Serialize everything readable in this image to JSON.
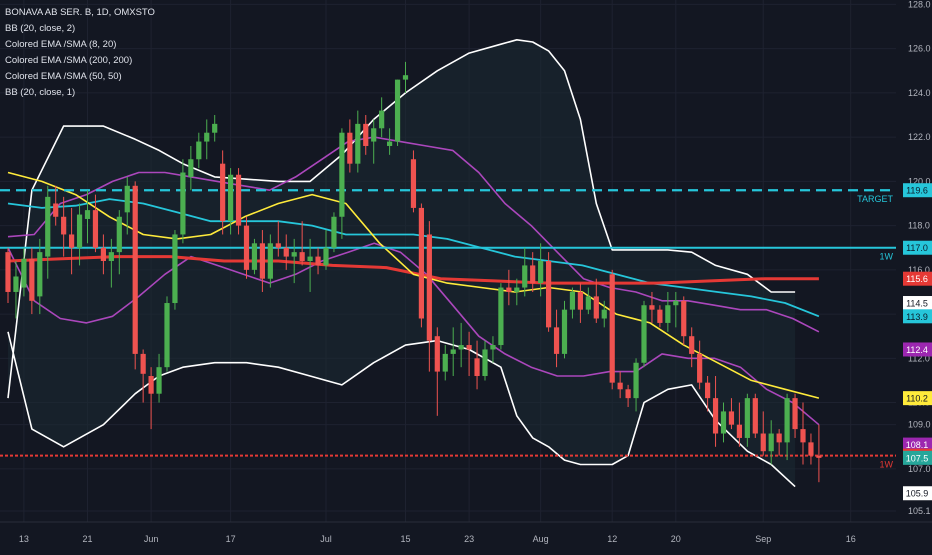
{
  "chart_data": {
    "type": "candlestick",
    "title": "BONAVA AB SER. B, 1D, OMXSTO",
    "legend": [
      "BB (20, close, 2)",
      "Colored EMA /SMA (8, 20)",
      "Colored EMA /SMA (200, 200)",
      "Colored EMA /SMA (50, 50)",
      "BB (20, close, 1)"
    ],
    "ylim": [
      104.6,
      128.2
    ],
    "y_ticks": [
      "128.0",
      "126.0",
      "124.0",
      "122.0",
      "120.0",
      "118.0",
      "116.0",
      "114.0",
      "112.0",
      "110.0",
      "109.0",
      "107.0",
      "105.1"
    ],
    "y_tick_values": [
      128.0,
      126.0,
      124.0,
      122.0,
      120.0,
      118.0,
      116.0,
      114.0,
      112.0,
      110.0,
      109.0,
      107.0,
      105.1
    ],
    "x_ticks": [
      "13",
      "21",
      "Jun",
      "17",
      "Jul",
      "15",
      "23",
      "Aug",
      "12",
      "20",
      "Sep",
      "16"
    ],
    "x_tick_index": [
      2,
      10,
      18,
      28,
      40,
      50,
      58,
      67,
      76,
      84,
      95,
      106
    ],
    "candles": [
      [
        116.8,
        117.0,
        114.5,
        115.0
      ],
      [
        115.0,
        116.4,
        113.8,
        115.7
      ],
      [
        115.2,
        117.0,
        114.8,
        116.5
      ],
      [
        116.5,
        117.0,
        114.0,
        114.6
      ],
      [
        114.8,
        117.4,
        114.0,
        116.8
      ],
      [
        116.6,
        119.8,
        115.6,
        119.3
      ],
      [
        119.0,
        119.8,
        118.0,
        118.4
      ],
      [
        118.4,
        119.3,
        116.6,
        117.6
      ],
      [
        117.6,
        118.8,
        115.8,
        117.0
      ],
      [
        117.0,
        119.0,
        116.2,
        118.5
      ],
      [
        118.3,
        119.6,
        117.2,
        118.7
      ],
      [
        118.7,
        119.4,
        116.8,
        117.0
      ],
      [
        117.0,
        117.6,
        115.8,
        116.4
      ],
      [
        116.4,
        117.4,
        115.2,
        116.8
      ],
      [
        116.8,
        118.7,
        115.8,
        118.4
      ],
      [
        118.6,
        120.2,
        117.6,
        119.8
      ],
      [
        119.8,
        120.0,
        111.5,
        112.2
      ],
      [
        112.2,
        112.4,
        110.0,
        111.3
      ],
      [
        111.2,
        111.6,
        108.8,
        110.4
      ],
      [
        110.4,
        112.2,
        110.0,
        111.6
      ],
      [
        111.6,
        114.8,
        111.4,
        114.5
      ],
      [
        114.5,
        117.8,
        114.2,
        117.6
      ],
      [
        117.6,
        121.0,
        117.2,
        120.4
      ],
      [
        120.2,
        121.6,
        119.6,
        121.0
      ],
      [
        121.0,
        122.2,
        120.6,
        121.8
      ],
      [
        121.8,
        122.8,
        121.0,
        122.2
      ],
      [
        122.2,
        123.0,
        121.8,
        122.6
      ],
      [
        120.8,
        121.4,
        117.6,
        118.2
      ],
      [
        118.2,
        120.6,
        117.6,
        120.3
      ],
      [
        120.3,
        120.6,
        117.6,
        118.0
      ],
      [
        118.0,
        118.4,
        115.6,
        116.0
      ],
      [
        116.0,
        117.4,
        115.8,
        117.2
      ],
      [
        117.2,
        117.8,
        115.0,
        115.6
      ],
      [
        115.6,
        117.6,
        115.2,
        117.2
      ],
      [
        117.2,
        118.2,
        116.6,
        117.0
      ],
      [
        117.0,
        117.6,
        116.0,
        116.6
      ],
      [
        116.6,
        117.4,
        115.4,
        116.8
      ],
      [
        116.8,
        118.2,
        116.2,
        116.4
      ],
      [
        116.4,
        117.4,
        115.0,
        116.6
      ],
      [
        116.6,
        117.0,
        115.8,
        116.2
      ],
      [
        116.2,
        117.8,
        116.0,
        117.0
      ],
      [
        117.0,
        118.6,
        116.8,
        118.4
      ],
      [
        118.4,
        122.4,
        117.4,
        122.2
      ],
      [
        122.2,
        122.8,
        120.4,
        120.8
      ],
      [
        120.8,
        123.2,
        120.4,
        122.6
      ],
      [
        122.6,
        123.0,
        121.2,
        121.6
      ],
      [
        121.8,
        122.8,
        120.8,
        122.4
      ],
      [
        122.4,
        123.8,
        122.0,
        123.2
      ],
      [
        121.6,
        122.4,
        121.2,
        121.8
      ],
      [
        121.8,
        124.6,
        121.6,
        124.6
      ],
      [
        124.6,
        125.4,
        124.0,
        124.8
      ],
      [
        121.0,
        121.4,
        118.6,
        118.8
      ],
      [
        118.8,
        119.0,
        113.4,
        113.8
      ],
      [
        117.6,
        118.2,
        111.4,
        112.8
      ],
      [
        113.0,
        113.4,
        109.4,
        111.4
      ],
      [
        111.4,
        112.6,
        111.0,
        112.2
      ],
      [
        112.2,
        113.4,
        111.2,
        112.4
      ],
      [
        112.4,
        113.6,
        111.6,
        112.6
      ],
      [
        112.6,
        113.2,
        111.2,
        112.4
      ],
      [
        112.0,
        112.8,
        110.6,
        111.2
      ],
      [
        111.2,
        112.8,
        111.0,
        112.4
      ],
      [
        112.4,
        113.0,
        111.8,
        112.6
      ],
      [
        112.6,
        115.4,
        112.4,
        115.2
      ],
      [
        115.2,
        116.0,
        114.4,
        115.0
      ],
      [
        115.0,
        115.6,
        114.4,
        115.2
      ],
      [
        115.2,
        117.0,
        114.8,
        116.2
      ],
      [
        116.2,
        116.8,
        115.0,
        115.4
      ],
      [
        115.4,
        117.2,
        114.8,
        116.4
      ],
      [
        116.4,
        116.8,
        113.2,
        113.4
      ],
      [
        113.4,
        114.2,
        111.6,
        112.2
      ],
      [
        112.2,
        114.6,
        112.0,
        114.2
      ],
      [
        114.2,
        115.2,
        113.8,
        115.0
      ],
      [
        115.0,
        115.4,
        113.6,
        114.2
      ],
      [
        114.2,
        115.2,
        114.0,
        114.8
      ],
      [
        114.8,
        115.6,
        113.6,
        113.8
      ],
      [
        113.8,
        114.6,
        113.4,
        114.2
      ],
      [
        115.8,
        116.0,
        110.6,
        110.9
      ],
      [
        110.9,
        111.4,
        110.2,
        110.6
      ],
      [
        110.6,
        110.8,
        109.8,
        110.2
      ],
      [
        110.2,
        112.0,
        109.6,
        111.8
      ],
      [
        111.8,
        114.6,
        111.6,
        114.4
      ],
      [
        114.4,
        115.0,
        113.6,
        114.2
      ],
      [
        114.2,
        114.4,
        113.4,
        113.6
      ],
      [
        113.6,
        115.0,
        113.2,
        114.4
      ],
      [
        114.4,
        115.0,
        113.4,
        114.6
      ],
      [
        114.6,
        114.8,
        112.6,
        113.0
      ],
      [
        113.0,
        113.4,
        111.6,
        112.2
      ],
      [
        112.2,
        112.8,
        110.6,
        110.9
      ],
      [
        110.9,
        111.2,
        109.6,
        110.2
      ],
      [
        110.2,
        111.2,
        108.0,
        108.6
      ],
      [
        108.6,
        110.0,
        108.2,
        109.6
      ],
      [
        109.6,
        110.2,
        108.8,
        109.0
      ],
      [
        109.0,
        110.0,
        108.0,
        108.4
      ],
      [
        108.4,
        110.4,
        108.0,
        110.2
      ],
      [
        110.2,
        110.4,
        108.4,
        108.6
      ],
      [
        108.6,
        109.6,
        107.6,
        107.8
      ],
      [
        107.8,
        109.2,
        107.2,
        108.6
      ],
      [
        108.6,
        108.8,
        107.6,
        108.2
      ],
      [
        108.2,
        110.4,
        107.4,
        110.2
      ],
      [
        110.2,
        110.4,
        108.4,
        108.8
      ],
      [
        108.8,
        110.0,
        107.2,
        108.2
      ],
      [
        108.2,
        108.6,
        107.2,
        107.6
      ],
      [
        107.6,
        109.0,
        106.4,
        107.5
      ]
    ],
    "bb_upper": [
      110.2,
      119.6,
      122.5,
      122.5,
      121.9,
      121.4,
      120.8,
      120.2,
      120.1,
      120.0,
      120.0,
      121.2,
      122.8,
      124.0,
      125.0,
      125.8,
      126.2,
      126.4,
      126.3,
      125.9,
      125.0,
      122.8,
      119.0,
      116.9,
      116.9,
      116.9,
      116.9,
      116.8,
      116.2,
      115.8,
      115.0,
      115.0
    ],
    "bb_upper_x": [
      0,
      3,
      7,
      12,
      16,
      19,
      22,
      26,
      30,
      34,
      38,
      42,
      46,
      50,
      54,
      58,
      62,
      64,
      66,
      68,
      70,
      72,
      74,
      76,
      78,
      80,
      83,
      86,
      89,
      93,
      96,
      99
    ],
    "bb_lower": [
      113.2,
      108.8,
      108.0,
      109.0,
      110.4,
      111.2,
      111.6,
      111.8,
      111.8,
      111.6,
      111.2,
      110.8,
      111.8,
      112.6,
      112.8,
      112.4,
      111.6,
      109.4,
      108.4,
      108.0,
      107.4,
      107.2,
      107.2,
      107.2,
      107.6,
      110.0,
      110.6,
      110.8,
      109.2,
      107.8,
      107.2,
      106.2
    ],
    "bb1_upper": [
      117.5,
      117.6,
      119.0,
      119.4,
      120.0,
      120.4,
      120.4,
      120.2,
      120.0,
      119.8,
      119.6,
      120.2,
      121.0,
      121.8,
      122.0,
      121.8,
      121.6,
      121.4,
      120.4,
      119.0,
      118.0,
      116.8,
      115.6,
      115.2,
      115.0,
      114.6,
      114.6,
      114.4,
      114.2,
      114.2,
      113.8,
      113.2
    ],
    "bb1_lower": [
      117.0,
      114.6,
      113.8,
      113.6,
      113.9,
      114.8,
      115.8,
      116.6,
      116.2,
      115.8,
      115.4,
      115.8,
      116.4,
      116.8,
      117.2,
      116.8,
      115.8,
      114.4,
      113.0,
      112.2,
      111.6,
      111.2,
      111.2,
      111.4,
      111.4,
      112.2,
      112.0,
      112.0,
      111.6,
      110.6,
      110.0,
      109.0
    ],
    "bb_mid": [
      118.0,
      117.6,
      117.5,
      117.2,
      117.4,
      117.6,
      118.0,
      118.6,
      118.6,
      118.2,
      117.8,
      117.4,
      117.0,
      116.8,
      117.0,
      117.4,
      117.6,
      117.4,
      116.0,
      114.6,
      114.2,
      114.0,
      113.8,
      113.6,
      113.2,
      113.4,
      113.4,
      113.2,
      112.6,
      112.0,
      111.4,
      110.6
    ],
    "ema50": [
      119.0,
      118.8,
      118.9,
      119.2,
      119.0,
      118.6,
      118.2,
      118.2,
      118.2,
      118.0,
      117.6,
      117.6,
      117.6,
      117.4,
      117.0,
      116.6,
      116.4,
      116.2,
      115.8,
      115.4,
      115.2,
      115.0,
      114.8,
      114.5,
      113.9
    ],
    "ema200": [
      116.4,
      116.5,
      116.6,
      116.6,
      116.4,
      116.4,
      116.2,
      116.1,
      115.6,
      115.5,
      115.4,
      115.4,
      115.4,
      115.5,
      115.6,
      115.6
    ],
    "ema8": [
      120.4,
      120.0,
      119.4,
      118.4,
      117.6,
      117.4,
      117.6,
      118.4,
      119.0,
      119.4,
      119.0,
      117.2,
      115.8,
      115.4,
      115.2,
      115.0,
      115.2,
      115.0,
      114.0,
      113.6,
      112.6,
      111.8,
      111.0,
      110.6,
      110.2
    ],
    "price_labels": [
      {
        "text": "119.6",
        "value": 119.6,
        "color": "#26c6da",
        "textColor": "#0b1c2a"
      },
      {
        "text": "117.0",
        "value": 117.0,
        "color": "#26c6da",
        "textColor": "#0b1c2a"
      },
      {
        "text": "115.6",
        "value": 115.6,
        "color": "#e53935",
        "textColor": "#ffffff"
      },
      {
        "text": "114.5",
        "value": 114.5,
        "color": "#ffffff",
        "textColor": "#131722"
      },
      {
        "text": "113.9",
        "value": 113.9,
        "color": "#26c6da",
        "textColor": "#0b1c2a"
      },
      {
        "text": "112.4",
        "value": 112.4,
        "color": "#9c27b0",
        "textColor": "#ffffff"
      },
      {
        "text": "110.2",
        "value": 110.2,
        "color": "#ffeb3b",
        "textColor": "#131722"
      },
      {
        "text": "108.1",
        "value": 108.1,
        "color": "#9c27b0",
        "textColor": "#ffffff"
      },
      {
        "text": "107.6",
        "value": 107.6,
        "color": "#e53935",
        "textColor": "#ffffff"
      },
      {
        "text": "107.5",
        "value": 107.5,
        "color": "#26a69a",
        "textColor": "#ffffff"
      },
      {
        "text": "105.9",
        "value": 105.9,
        "color": "#ffffff",
        "textColor": "#131722"
      }
    ],
    "hlines": [
      {
        "value": 119.6,
        "label": "TARGET",
        "color": "#26c6da",
        "dashed": true
      },
      {
        "value": 117.0,
        "label": "1W",
        "color": "#26c6da",
        "dashed": false
      },
      {
        "value": 107.6,
        "label": "1W",
        "color": "#e53935",
        "dashed": true
      }
    ],
    "colors": {
      "up": "#4caf50",
      "down": "#ef5350",
      "bb": "#ffffff",
      "bb1": "#ab47bc",
      "ema8": "#ffeb3b",
      "ema50": "#26c6da",
      "ema200": "#e53935",
      "ema200_alt": "#d500f9",
      "background": "#131722",
      "grid": "#1e2230",
      "axis_text": "#b2b5be"
    },
    "grid": true
  }
}
